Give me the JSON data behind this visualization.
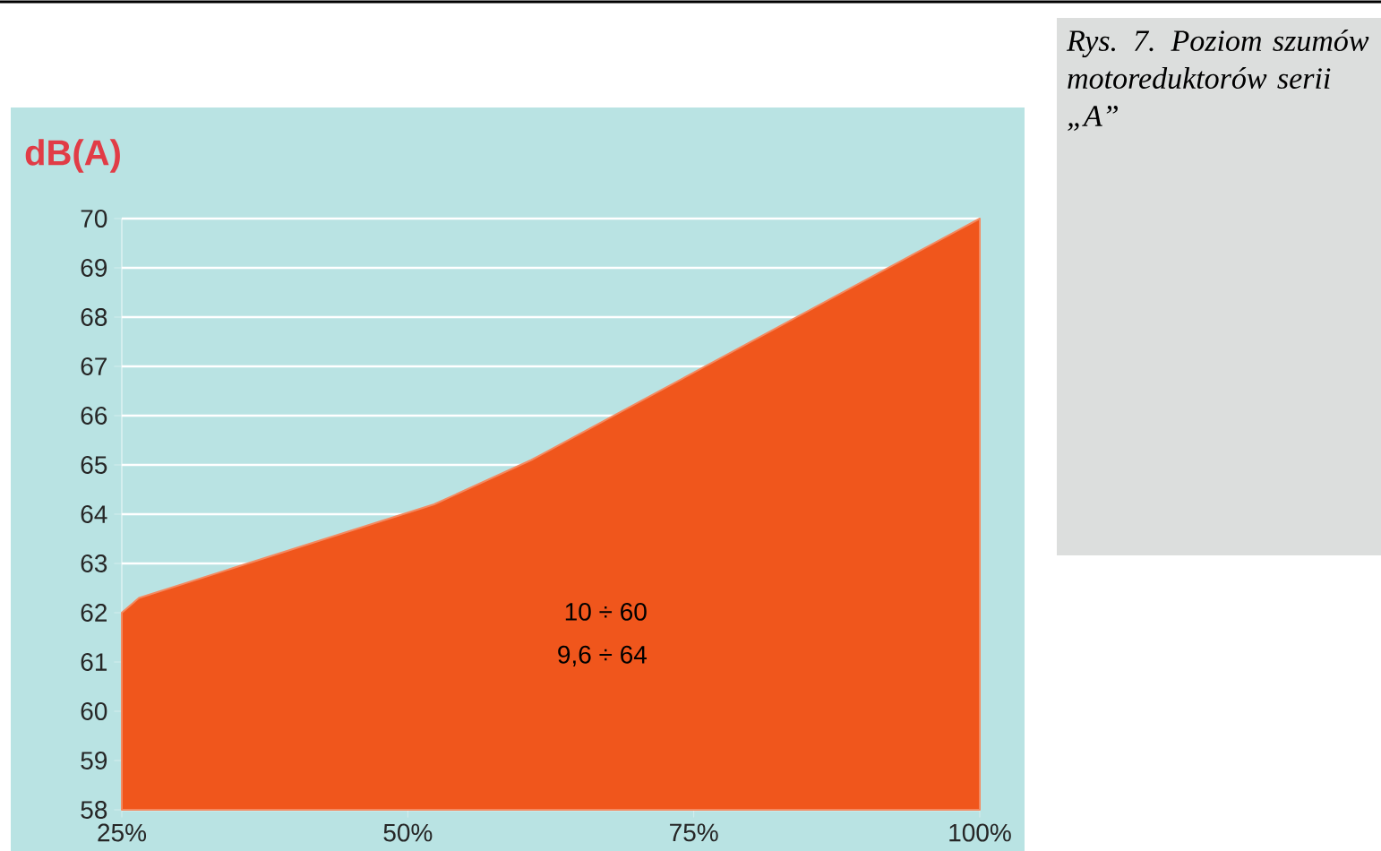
{
  "chart_data": {
    "type": "area",
    "title": "Rys. 7. Poziom szumów motoreduktorów serii „A”",
    "ylabel": "dB(A)",
    "annotations": [
      "10 ÷ 60",
      "9,6 ÷ 64"
    ],
    "x": [
      25,
      26.5,
      52.3,
      60.8,
      100
    ],
    "values": [
      62,
      62.3,
      64.2,
      65.1,
      70
    ],
    "color": "#f0561c",
    "xlim": [
      25,
      100
    ],
    "xticks": [
      {
        "value": 25,
        "label": "25%"
      },
      {
        "value": 50,
        "label": "50%"
      },
      {
        "value": 75,
        "label": "75%"
      },
      {
        "value": 100,
        "label": "100%"
      }
    ],
    "ylim": [
      58,
      70
    ],
    "yticks": [
      58,
      59,
      60,
      61,
      62,
      63,
      64,
      65,
      66,
      67,
      68,
      69,
      70
    ],
    "grid": "y"
  }
}
